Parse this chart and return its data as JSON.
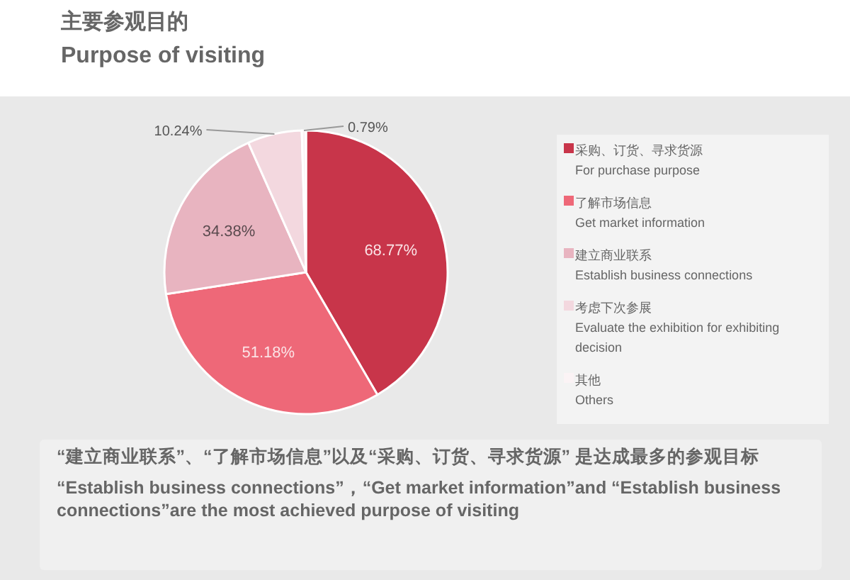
{
  "chart_data": {
    "type": "pie",
    "title": "主要参观目的",
    "subtitle": "Purpose of visiting",
    "categories": [
      "采购、订货、寻求货源\nFor purchase purpose",
      "了解市场信息\nGet market information",
      "建立商业联系\nEstablish business connections",
      "考虑下次参展\nEvaluate the exhibition for exhibiting decision",
      "其他\nOthers"
    ],
    "values": [
      68.77,
      51.18,
      34.38,
      10.24,
      0.79
    ],
    "value_labels": [
      "68.77%",
      "51.18%",
      "34.38%",
      "10.24%",
      "0.79%"
    ],
    "colors": [
      "#c8354a",
      "#ee6878",
      "#e8b4c0",
      "#f3d8df",
      "#fbf3f5"
    ],
    "legend": "right",
    "annotations": [
      "“建立商业联系”、“了解市场信息”以及“采购、订货、寻求货源” 是达成最多的参观目标",
      "“Establish business connections”，“Get market information”and “Establish business connections”are the most achieved purpose of visiting"
    ]
  }
}
